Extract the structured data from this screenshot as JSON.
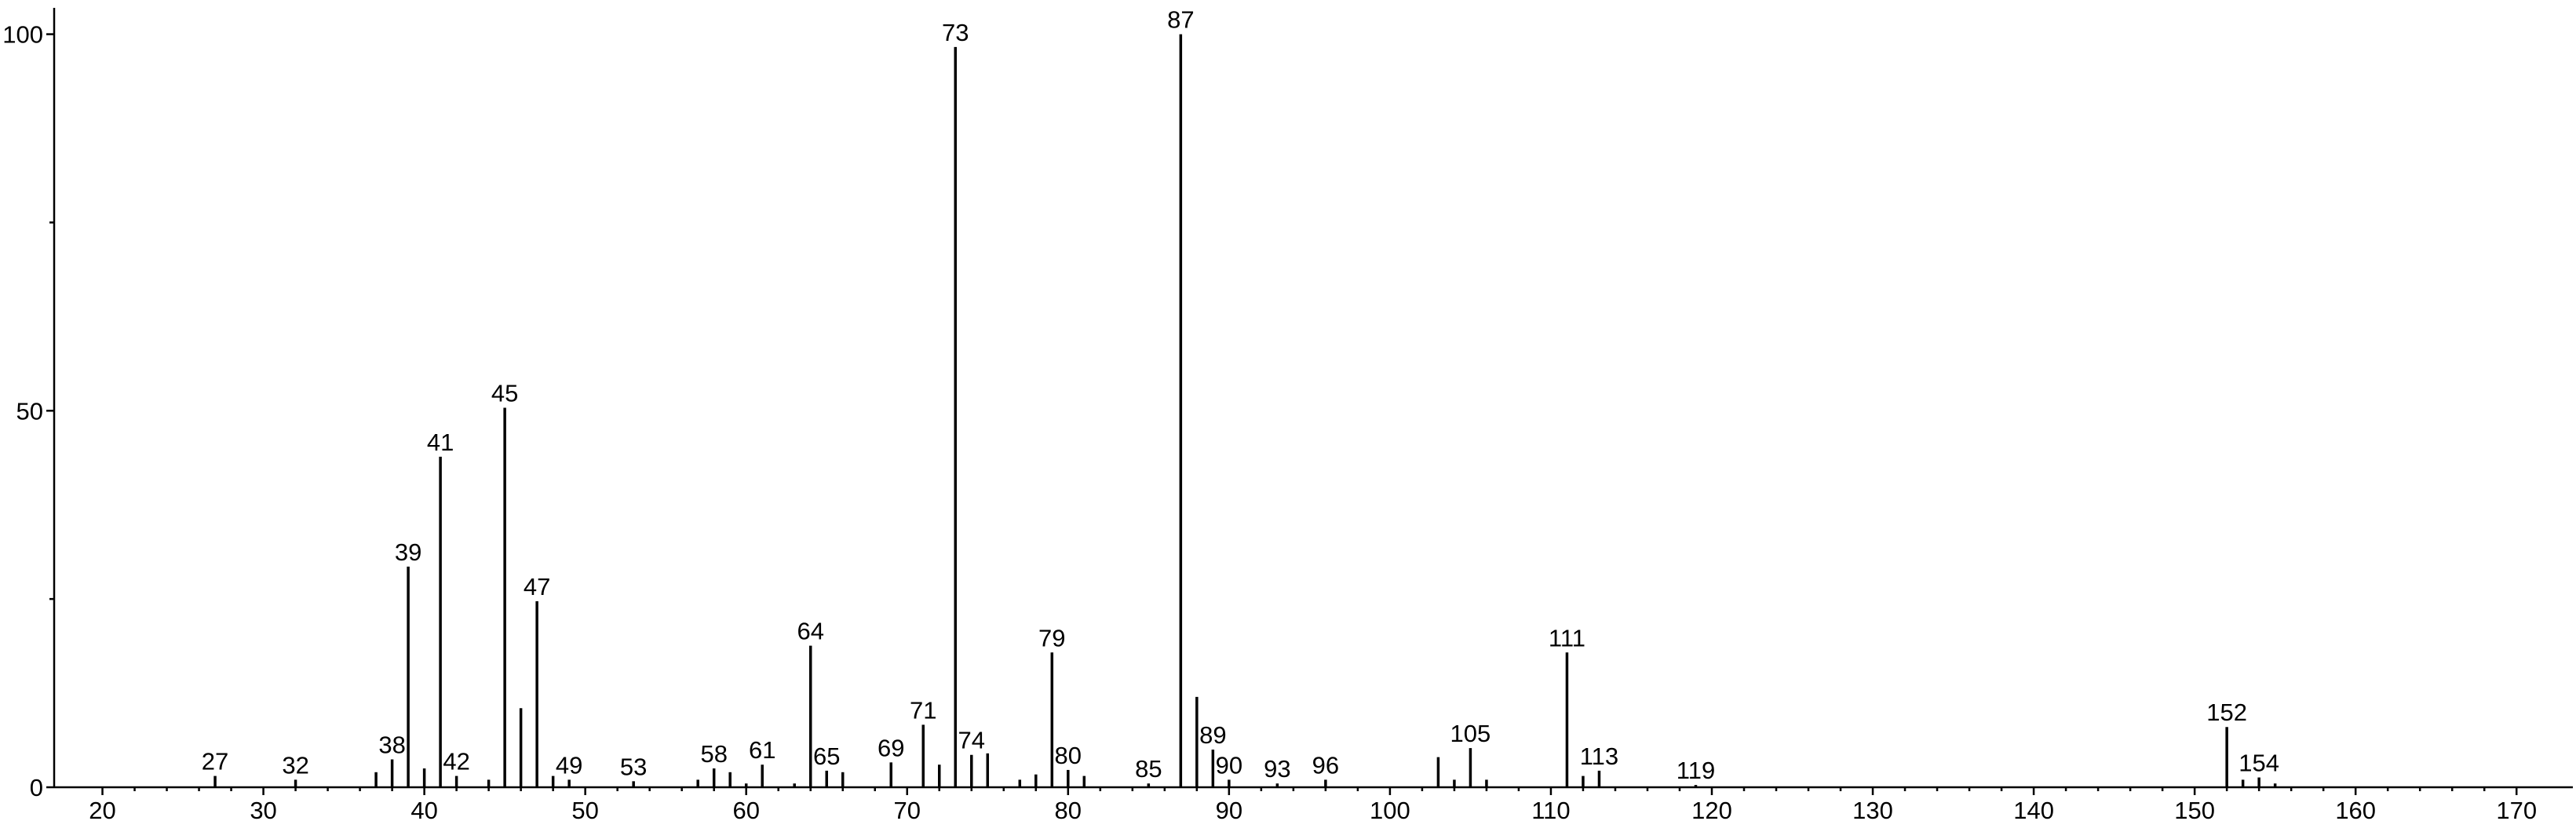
{
  "chart_data": {
    "type": "stem",
    "x": [
      27,
      32,
      37,
      38,
      39,
      40,
      41,
      42,
      44,
      45,
      46,
      47,
      48,
      49,
      53,
      57,
      58,
      59,
      60,
      61,
      63,
      64,
      65,
      66,
      69,
      71,
      72,
      73,
      74,
      75,
      77,
      78,
      79,
      80,
      81,
      85,
      87,
      88,
      89,
      90,
      93,
      96,
      103,
      104,
      105,
      106,
      111,
      112,
      113,
      119,
      152,
      153,
      154,
      155
    ],
    "values": [
      1.5,
      1,
      2,
      3.7,
      29.3,
      2.5,
      43.9,
      1.5,
      1,
      50.4,
      10.5,
      24.7,
      1.5,
      1,
      0.8,
      1,
      2.5,
      2,
      0.5,
      3,
      0.5,
      18.8,
      2.2,
      2,
      3.3,
      8.3,
      3,
      98.3,
      4.3,
      4.5,
      1,
      1.7,
      17.9,
      2.3,
      1.5,
      0.5,
      100,
      12,
      5,
      1,
      0.5,
      1,
      4,
      1,
      5.2,
      1,
      17.9,
      1.5,
      2.2,
      0.3,
      8,
      1,
      1.3,
      0.5
    ],
    "labeled": [
      true,
      true,
      false,
      true,
      true,
      false,
      true,
      true,
      false,
      true,
      false,
      true,
      false,
      true,
      true,
      false,
      true,
      false,
      false,
      true,
      false,
      true,
      true,
      false,
      true,
      true,
      false,
      true,
      true,
      false,
      false,
      false,
      true,
      true,
      false,
      true,
      true,
      false,
      true,
      true,
      true,
      true,
      false,
      false,
      true,
      false,
      true,
      false,
      true,
      true,
      true,
      false,
      true,
      false
    ],
    "color": "#000000",
    "xlim": [
      17,
      173.5
    ],
    "xticks": [
      20,
      30,
      40,
      50,
      60,
      70,
      80,
      90,
      100,
      110,
      120,
      130,
      140,
      150,
      160,
      170
    ],
    "ylim": [
      0,
      103.5
    ],
    "yticks": [
      0,
      50,
      100
    ]
  }
}
